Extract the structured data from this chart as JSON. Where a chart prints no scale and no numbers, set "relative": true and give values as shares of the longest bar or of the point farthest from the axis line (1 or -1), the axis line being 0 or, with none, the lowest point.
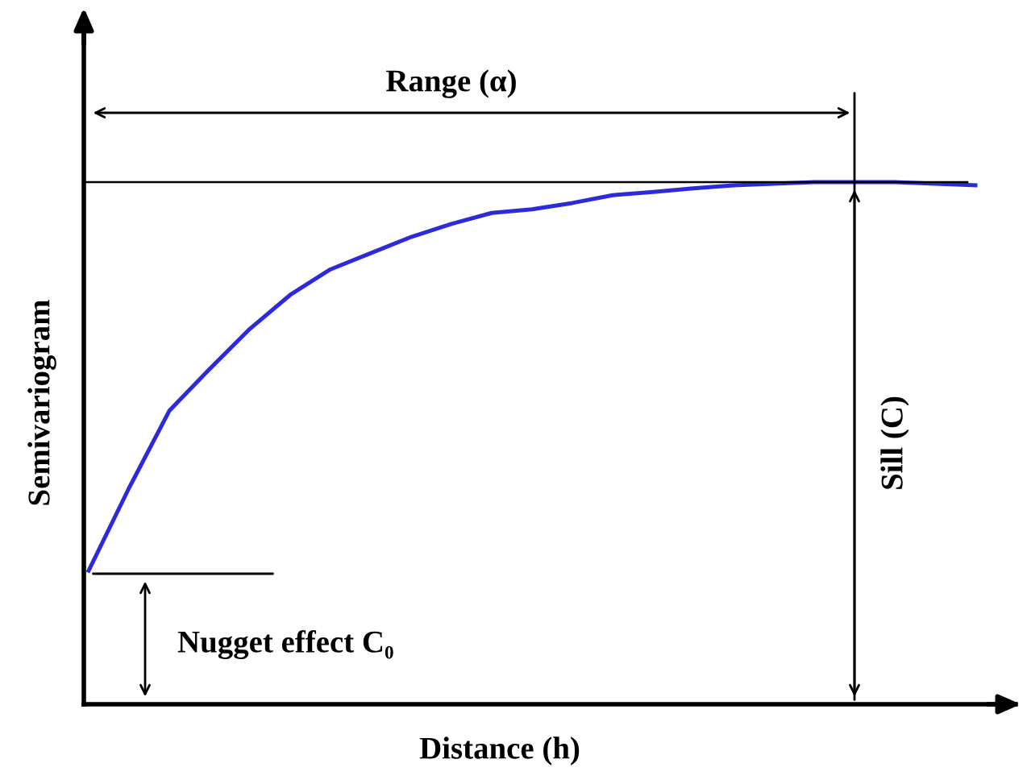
{
  "chart_data": {
    "type": "line",
    "relative": true,
    "xlabel": "Distance (h)",
    "ylabel": "Semivariogram",
    "categories": [
      null,
      null,
      null,
      null,
      null,
      null,
      null,
      null,
      null,
      null,
      null,
      null,
      null,
      null,
      null,
      null,
      null,
      null,
      null,
      null,
      null,
      null,
      null
    ],
    "series": [
      {
        "color": "#2b2bdc",
        "values": [
          0.256,
          0.414,
          0.562,
          0.642,
          0.719,
          0.784,
          0.833,
          0.864,
          0.895,
          0.92,
          0.941,
          0.948,
          0.96,
          0.975,
          0.981,
          0.988,
          0.994,
          0.997,
          1.0,
          1.0,
          1.0,
          0.997,
          0.994
        ]
      }
    ],
    "ref_lines": [
      {
        "axis": "y",
        "value": 1.0,
        "color": "#000000"
      }
    ],
    "annotations": [
      "Range (α)",
      "Sill (C)",
      "Nugget effect C₀"
    ],
    "marker": "none",
    "line_style": "solid"
  }
}
